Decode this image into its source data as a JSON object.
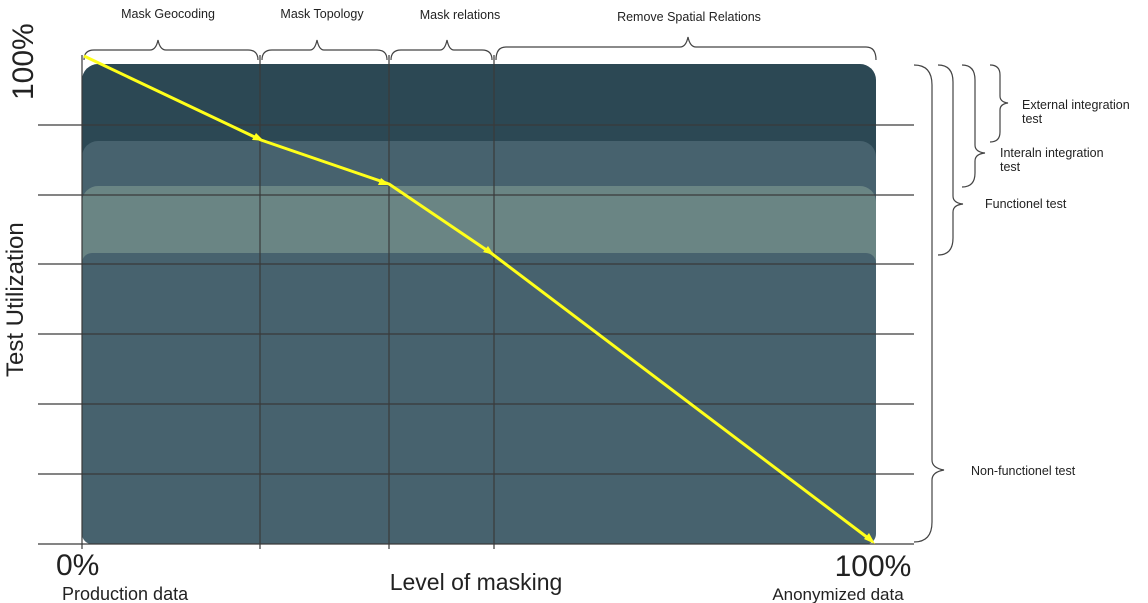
{
  "y_axis": {
    "label": "Test Utilization",
    "top_value": "100%"
  },
  "x_axis": {
    "label": "Level of masking",
    "left_value": "0%",
    "left_caption": "Production data",
    "right_value": "100%",
    "right_caption": "Anonymized data"
  },
  "phases": [
    {
      "label": "Mask Geocoding"
    },
    {
      "label": "Mask Topology"
    },
    {
      "label": "Mask relations"
    },
    {
      "label": "Remove Spatial Relations"
    }
  ],
  "test_levels": [
    {
      "label_lines": [
        "External integration",
        "test"
      ]
    },
    {
      "label_lines": [
        "Interaln integration",
        "test"
      ]
    },
    {
      "label_lines": [
        "Functionel test"
      ]
    },
    {
      "label_lines": [
        "Non-functionel test"
      ]
    }
  ],
  "colors": {
    "external_band": "#2c4854",
    "internal_band": "#47626e",
    "functional_band": "#6a8584",
    "nonfunctional_band": "#47626e",
    "line": "#ffff1a",
    "grid": "#3a3a3a"
  }
}
